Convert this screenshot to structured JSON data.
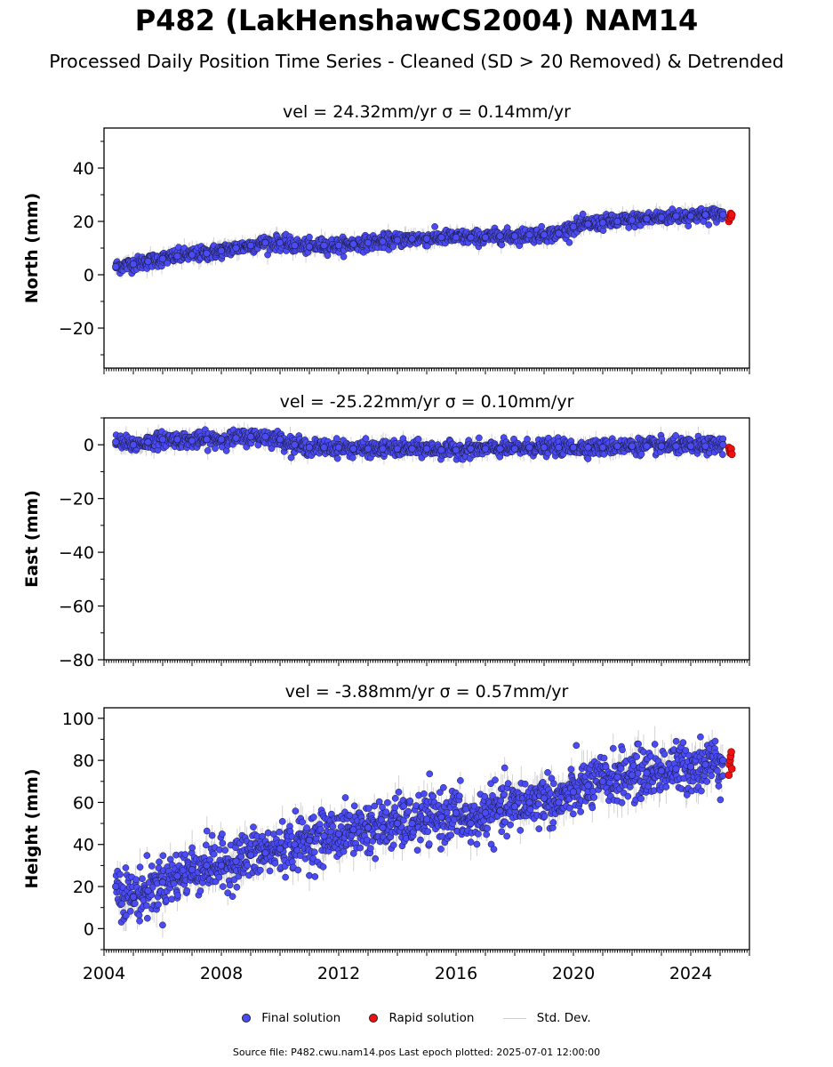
{
  "title": "P482 (LakHenshawCS2004) NAM14",
  "subtitle": "Processed Daily Position Time Series - Cleaned (SD > 20 Removed) & Detrended",
  "legend": {
    "final": "Final solution",
    "rapid": "Rapid solution",
    "std": "Std. Dev."
  },
  "footer": "Source file: P482.cwu.nam14.pos  Last epoch plotted: 2025-07-01 12:00:00",
  "colors": {
    "final": "#4b4bf5",
    "rapid": "#ee1111",
    "std": "#c8c8c8",
    "edge": "#1a1a3a"
  },
  "chart_data": [
    {
      "type": "scatter",
      "title": "vel = 24.32mm/yr   σ = 0.14mm/yr",
      "xlabel": "",
      "ylabel": "North (mm)",
      "xlim": [
        2004.0,
        2026.0
      ],
      "ylim": [
        -35,
        55
      ],
      "yticks": [
        -20,
        0,
        20,
        40
      ],
      "xticks": [
        2004,
        2008,
        2012,
        2016,
        2020,
        2024
      ],
      "grid": false,
      "series": [
        {
          "name": "Final solution",
          "x": [
            2004.4,
            2005.0,
            2005.5,
            2006.0,
            2006.5,
            2007.0,
            2007.5,
            2008.0,
            2008.5,
            2009.0,
            2009.5,
            2010.0,
            2010.5,
            2011.0,
            2011.5,
            2012.0,
            2012.5,
            2013.0,
            2013.5,
            2014.0,
            2014.5,
            2015.0,
            2015.5,
            2016.0,
            2016.5,
            2017.0,
            2017.5,
            2018.0,
            2018.5,
            2019.0,
            2019.5,
            2020.0,
            2020.5,
            2021.0,
            2021.5,
            2022.0,
            2022.5,
            2023.0,
            2023.5,
            2024.0,
            2024.5,
            2025.1
          ],
          "y": [
            3,
            4,
            5,
            6,
            7,
            7.5,
            8,
            9,
            10,
            11,
            12,
            12,
            11,
            10.5,
            11,
            11,
            11.5,
            12,
            12.5,
            13,
            13.5,
            13.5,
            14,
            14,
            14,
            14,
            14.5,
            14.5,
            15,
            15,
            15.5,
            18,
            19,
            19.5,
            20,
            20.5,
            21,
            21.5,
            22,
            22,
            22.5,
            22.5
          ]
        },
        {
          "name": "Rapid solution",
          "x": [
            2025.3,
            2025.32,
            2025.34,
            2025.36,
            2025.38,
            2025.4
          ],
          "y": [
            20,
            21,
            22,
            23,
            21.5,
            22.5
          ]
        }
      ]
    },
    {
      "type": "scatter",
      "title": "vel = -25.22mm/yr   σ = 0.10mm/yr",
      "xlabel": "",
      "ylabel": "East (mm)",
      "xlim": [
        2004.0,
        2026.0
      ],
      "ylim": [
        -80,
        10
      ],
      "yticks": [
        -80,
        -60,
        -40,
        -20,
        0
      ],
      "xticks": [
        2004,
        2008,
        2012,
        2016,
        2020,
        2024
      ],
      "grid": false,
      "series": [
        {
          "name": "Final solution",
          "x": [
            2004.4,
            2005.0,
            2005.5,
            2006.0,
            2006.5,
            2007.0,
            2007.5,
            2008.0,
            2008.5,
            2009.0,
            2009.5,
            2010.0,
            2010.5,
            2011.0,
            2011.5,
            2012.0,
            2012.5,
            2013.0,
            2013.5,
            2014.0,
            2014.5,
            2015.0,
            2015.5,
            2016.0,
            2016.5,
            2017.0,
            2017.5,
            2018.0,
            2018.5,
            2019.0,
            2019.5,
            2020.0,
            2020.5,
            2021.0,
            2021.5,
            2022.0,
            2022.5,
            2023.0,
            2023.5,
            2024.0,
            2024.5,
            2025.1
          ],
          "y": [
            1,
            0,
            1,
            2,
            2,
            1.5,
            2,
            2,
            2.5,
            3,
            3,
            2,
            0,
            -1,
            -1,
            -1,
            -1.5,
            -1.5,
            -1.5,
            -1.5,
            -1.5,
            -1.5,
            -2,
            -2,
            -1.5,
            -1.5,
            -1.5,
            -1.5,
            -1,
            -1,
            -1,
            -1,
            -1,
            -1,
            -0.5,
            -0.5,
            -0.5,
            -0.5,
            -0.5,
            -0.5,
            -0.5,
            0
          ]
        },
        {
          "name": "Rapid solution",
          "x": [
            2025.3,
            2025.32,
            2025.34,
            2025.36,
            2025.38,
            2025.4
          ],
          "y": [
            -1,
            -2,
            -3,
            -2.5,
            -1.5,
            -3.5
          ]
        }
      ]
    },
    {
      "type": "scatter",
      "title": "vel = -3.88mm/yr   σ = 0.57mm/yr",
      "xlabel": "",
      "ylabel": "Height (mm)",
      "xlim": [
        2004.0,
        2026.0
      ],
      "ylim": [
        -10,
        105
      ],
      "yticks": [
        0,
        20,
        40,
        60,
        80,
        100
      ],
      "xticks": [
        2004,
        2008,
        2012,
        2016,
        2020,
        2024
      ],
      "grid": false,
      "series": [
        {
          "name": "Final solution",
          "x": [
            2004.4,
            2005.0,
            2005.5,
            2006.0,
            2006.5,
            2007.0,
            2007.5,
            2008.0,
            2008.5,
            2009.0,
            2009.5,
            2010.0,
            2010.5,
            2011.0,
            2011.5,
            2012.0,
            2012.5,
            2013.0,
            2013.5,
            2014.0,
            2014.5,
            2015.0,
            2015.5,
            2016.0,
            2016.5,
            2017.0,
            2017.5,
            2018.0,
            2018.5,
            2019.0,
            2019.5,
            2020.0,
            2020.5,
            2021.0,
            2021.5,
            2022.0,
            2022.5,
            2023.0,
            2023.5,
            2024.0,
            2024.5,
            2025.1
          ],
          "y": [
            20,
            15,
            18,
            22,
            25,
            28,
            30,
            30,
            32,
            35,
            36,
            38,
            40,
            42,
            44,
            45,
            47,
            48,
            48,
            50,
            50,
            52,
            53,
            55,
            50,
            55,
            56,
            58,
            60,
            62,
            60,
            65,
            68,
            70,
            72,
            73,
            74,
            75,
            76,
            77,
            78,
            80
          ]
        },
        {
          "name": "Rapid solution",
          "x": [
            2025.3,
            2025.32,
            2025.34,
            2025.36,
            2025.38,
            2025.4
          ],
          "y": [
            73,
            78,
            80,
            82,
            84,
            76
          ]
        }
      ]
    }
  ]
}
